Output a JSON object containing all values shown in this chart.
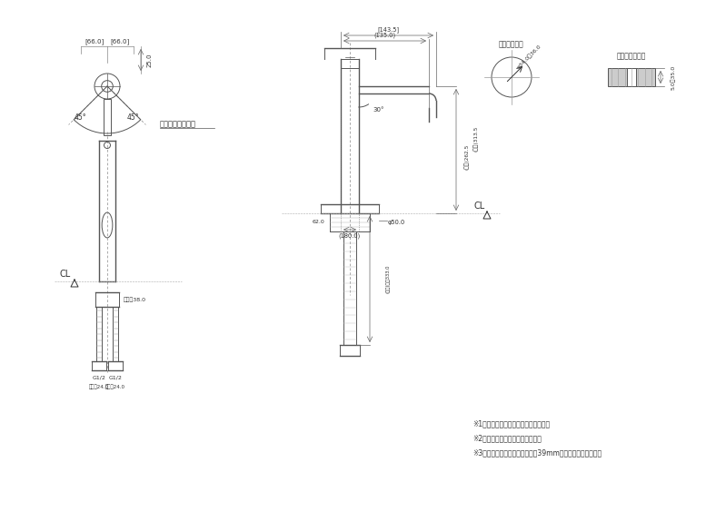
{
  "bg_color": "#ffffff",
  "line_color": "#555555",
  "dark_line": "#333333",
  "notes": [
    "※1　（　）内寸法は参考寸法である。",
    "※2　止水栓を必ず設置すること。",
    "※3　ブレードホースは曲げ帴彄39mm以上を確保すること。"
  ],
  "top_view_label": "ハンドル回転角度",
  "hole_label": "天板取付穴径",
  "section_label": "天板経付断面図",
  "dim_66_0": "[66.0]",
  "dim_66_1": "[66.0]",
  "dim_25": "25.0",
  "dim_45L": "45°",
  "dim_45R": "45°",
  "dim_143": "[143.5]",
  "dim_135": "(135.0)",
  "dim_180": "(180.0)",
  "dim_313": "(参考)313.5",
  "dim_262": "(参考)262.5",
  "dim_050": "φ50.0",
  "dim_62": "62.0",
  "dim_333": "(参考)専用333.0",
  "dim_38": "六角引38.0",
  "dim_24L": "六角引24.0",
  "dim_24R": "六角引24.0",
  "dim_g12L": "G1/2",
  "dim_g12R": "G1/2",
  "dim_34_36": "φ34.0～36.0",
  "dim_5_35": "5.0～35.0",
  "dim_30deg": "30°",
  "cl_label": "CL"
}
